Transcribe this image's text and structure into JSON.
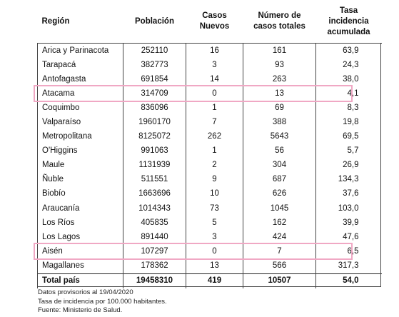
{
  "headers": [
    "Región",
    "Población",
    "Casos Nuevos",
    "Número de casos totales",
    "Tasa incidencia acumulada"
  ],
  "rows": [
    {
      "region": "Arica y Parinacota",
      "poblacion": "252110",
      "nuevos": "16",
      "totales": "161",
      "tasa": "63,9"
    },
    {
      "region": "Tarapacá",
      "poblacion": "382773",
      "nuevos": "3",
      "totales": "93",
      "tasa": "24,3"
    },
    {
      "region": "Antofagasta",
      "poblacion": "691854",
      "nuevos": "14",
      "totales": "263",
      "tasa": "38,0"
    },
    {
      "region": "Atacama",
      "poblacion": "314709",
      "nuevos": "0",
      "totales": "13",
      "tasa": "4,1",
      "highlight": true
    },
    {
      "region": "Coquimbo",
      "poblacion": "836096",
      "nuevos": "1",
      "totales": "69",
      "tasa": "8,3"
    },
    {
      "region": "Valparaíso",
      "poblacion": "1960170",
      "nuevos": "7",
      "totales": "388",
      "tasa": "19,8"
    },
    {
      "region": "Metropolitana",
      "poblacion": "8125072",
      "nuevos": "262",
      "totales": "5643",
      "tasa": "69,5"
    },
    {
      "region": "O'Higgins",
      "poblacion": "991063",
      "nuevos": "1",
      "totales": "56",
      "tasa": "5,7"
    },
    {
      "region": "Maule",
      "poblacion": "1131939",
      "nuevos": "2",
      "totales": "304",
      "tasa": "26,9"
    },
    {
      "region": "Ñuble",
      "poblacion": "511551",
      "nuevos": "9",
      "totales": "687",
      "tasa": "134,3"
    },
    {
      "region": "Biobío",
      "poblacion": "1663696",
      "nuevos": "10",
      "totales": "626",
      "tasa": "37,6"
    },
    {
      "region": "Araucanía",
      "poblacion": "1014343",
      "nuevos": "73",
      "totales": "1045",
      "tasa": "103,0"
    },
    {
      "region": "Los Ríos",
      "poblacion": "405835",
      "nuevos": "5",
      "totales": "162",
      "tasa": "39,9"
    },
    {
      "region": "Los Lagos",
      "poblacion": "891440",
      "nuevos": "3",
      "totales": "424",
      "tasa": "47,6"
    },
    {
      "region": "Aisén",
      "poblacion": "107297",
      "nuevos": "0",
      "totales": "7",
      "tasa": "6,5",
      "highlight": true
    },
    {
      "region": "Magallanes",
      "poblacion": "178362",
      "nuevos": "13",
      "totales": "566",
      "tasa": "317,3"
    }
  ],
  "total": {
    "region": "Total país",
    "poblacion": "19458310",
    "nuevos": "419",
    "totales": "10507",
    "tasa": "54,0"
  },
  "notes": [
    "Datos provisorios al 19/04/2020",
    "Tasa de incidencia por 100.000 habitantes.",
    "Fuente: Ministerio de Salud."
  ],
  "highlight_color": "#f0a8c4"
}
